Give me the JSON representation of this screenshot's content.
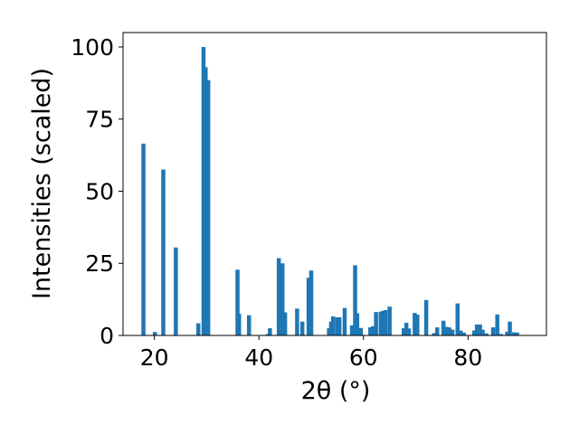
{
  "chart_data": {
    "type": "bar",
    "xlabel": "2θ (°)",
    "ylabel": "Intensities (scaled)",
    "xlim": [
      14,
      95
    ],
    "ylim": [
      0,
      105
    ],
    "xticks": [
      20,
      40,
      60,
      80
    ],
    "yticks": [
      0,
      25,
      50,
      75,
      100
    ],
    "bar_color": "#1f77b4",
    "grid": false,
    "x": [
      17.9,
      20.1,
      21.7,
      24.1,
      28.4,
      29.4,
      29.8,
      30.3,
      35.9,
      36.2,
      38.1,
      41.7,
      42.1,
      43.8,
      44.5,
      45.0,
      47.3,
      48.3,
      49.5,
      50.0,
      53.4,
      53.8,
      54.2,
      55.0,
      55.4,
      56.4,
      57.8,
      58.4,
      58.8,
      59.5,
      61.3,
      61.8,
      62.4,
      63.3,
      63.7,
      64.2,
      65.0,
      67.7,
      68.2,
      68.7,
      69.8,
      70.3,
      72.0,
      73.5,
      74.1,
      75.3,
      75.8,
      76.4,
      77.0,
      78.0,
      78.6,
      79.2,
      81.2,
      81.7,
      82.3,
      82.8,
      83.5,
      84.8,
      85.6,
      86.3,
      87.5,
      88.0,
      88.8,
      89.4
    ],
    "values": [
      66.5,
      1.2,
      57.5,
      30.5,
      4.2,
      100.0,
      93.0,
      88.5,
      22.8,
      7.5,
      7.0,
      0.5,
      2.5,
      26.8,
      25.0,
      8.0,
      9.3,
      4.8,
      20.0,
      22.5,
      2.5,
      4.8,
      6.6,
      6.3,
      6.3,
      9.5,
      3.5,
      24.3,
      7.7,
      2.6,
      2.8,
      3.2,
      8.1,
      8.2,
      8.5,
      8.8,
      10.0,
      2.5,
      4.4,
      2.4,
      7.8,
      7.2,
      12.3,
      0.8,
      2.8,
      5.1,
      3.0,
      2.8,
      2.0,
      11.1,
      1.7,
      1.0,
      1.7,
      3.8,
      3.8,
      2.0,
      0.7,
      2.8,
      7.3,
      0.5,
      1.3,
      4.8,
      1.1,
      1.0
    ]
  }
}
